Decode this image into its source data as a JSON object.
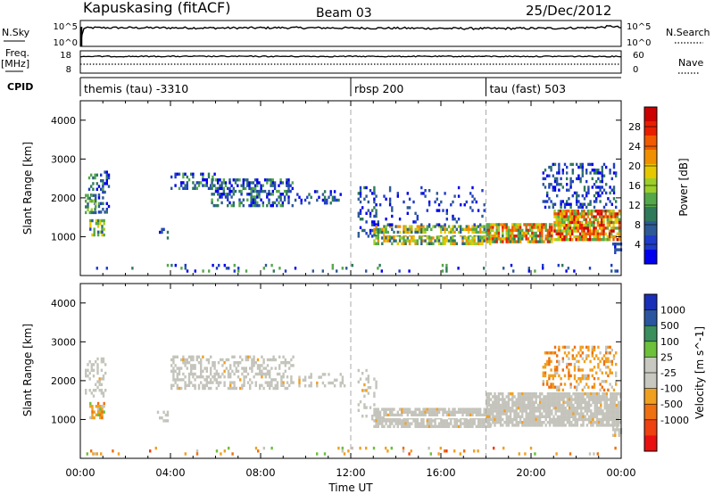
{
  "header": {
    "station": "Kapuskasing (fitACF)",
    "beam": "Beam 03",
    "date": "25/Dec/2012"
  },
  "labels": {
    "nsky": "N.Sky",
    "nsearch": "N.Search",
    "freq": "Freq.",
    "mhz": "[MHz]",
    "nave": "Nave",
    "cpid": "CPID",
    "xlabel": "Time UT",
    "ylabel1": "Slant Range [km]",
    "ylabel2": "Slant Range [km]"
  },
  "noise_axis": {
    "left_top": "10^5",
    "left_bottom": "10^0",
    "right_top": "10^5",
    "right_bottom": "10^0"
  },
  "freq_axis": {
    "left_top": "18",
    "left_bottom": "8",
    "right_top": "60",
    "right_bottom": "0"
  },
  "cpid_segments": [
    {
      "label": "themis (tau) -3310",
      "start_hour": 0
    },
    {
      "label": "rbsp 200",
      "start_hour": 12
    },
    {
      "label": "tau (fast) 503",
      "start_hour": 18
    }
  ],
  "colors": {
    "power": [
      "#0000ee",
      "#1e3cc8",
      "#2d5a96",
      "#2f7a5a",
      "#55a84a",
      "#9ccf2a",
      "#e6c800",
      "#f09000",
      "#f05a00",
      "#e81e00",
      "#cc0000"
    ],
    "velocity": [
      "#1a2fb8",
      "#2a56a0",
      "#3a8f5c",
      "#6cc03a",
      "#c8c8c0",
      "#c8c8c0",
      "#f0a020",
      "#ee7010",
      "#ee4010",
      "#e81010"
    ],
    "ground": "#c4c4bc"
  },
  "chart_data": [
    {
      "type": "line",
      "title": "N.Sky / N.Search noise",
      "xlim": [
        0,
        24
      ],
      "series": [
        {
          "name": "N.Sky",
          "x": [
            0.05,
            0.1,
            0.5,
            3,
            6,
            9,
            12,
            15,
            18,
            21,
            23,
            23.6,
            24
          ],
          "y_frac": [
            0.08,
            0.7,
            0.72,
            0.72,
            0.71,
            0.72,
            0.71,
            0.7,
            0.69,
            0.7,
            0.73,
            0.78,
            0.72
          ]
        }
      ]
    },
    {
      "type": "line",
      "title": "Freq / Nave",
      "xlim": [
        0,
        24
      ],
      "series": [
        {
          "name": "Freq",
          "x": [
            0,
            6,
            12,
            18,
            24
          ],
          "y_frac": [
            0.75,
            0.75,
            0.76,
            0.75,
            0.75
          ]
        },
        {
          "name": "Nave",
          "x": [
            0,
            6,
            12,
            18,
            24
          ],
          "y_frac": [
            0.55,
            0.55,
            0.55,
            0.55,
            0.55
          ]
        }
      ]
    },
    {
      "type": "heatmap",
      "title": "Power",
      "colorbar_label": "Power [dB]",
      "colorbar_ticks": [
        "4",
        "8",
        "12",
        "16",
        "20",
        "24",
        "28"
      ],
      "xlim": [
        0,
        24
      ],
      "ylim": [
        0,
        4500
      ],
      "xticks": [
        "00:00",
        "04:00",
        "08:00",
        "12:00",
        "16:00",
        "20:00",
        "00:00"
      ],
      "yticks": [
        "1000",
        "2000",
        "3000",
        "4000"
      ],
      "regions": [
        {
          "t0": 0.35,
          "t1": 1.3,
          "r0": 1600,
          "r1": 2700,
          "density": 0.3,
          "c0": 0,
          "c1": 4
        },
        {
          "t0": 0.2,
          "t1": 0.7,
          "r0": 1600,
          "r1": 2100,
          "density": 0.55,
          "c0": 2,
          "c1": 5
        },
        {
          "t0": 0.4,
          "t1": 1.1,
          "r0": 1000,
          "r1": 1450,
          "density": 0.6,
          "c0": 1,
          "c1": 6
        },
        {
          "t0": 3.4,
          "t1": 3.9,
          "r0": 900,
          "r1": 1300,
          "density": 0.35,
          "c0": 0,
          "c1": 3
        },
        {
          "t0": 4.0,
          "t1": 6.0,
          "r0": 2200,
          "r1": 2650,
          "density": 0.4,
          "c0": 0,
          "c1": 4
        },
        {
          "t0": 5.8,
          "t1": 9.5,
          "r0": 1800,
          "r1": 2500,
          "density": 0.45,
          "c0": 0,
          "c1": 4
        },
        {
          "t0": 9.5,
          "t1": 11.8,
          "r0": 1800,
          "r1": 2200,
          "density": 0.3,
          "c0": 0,
          "c1": 3
        },
        {
          "t0": 12.3,
          "t1": 13.2,
          "r0": 1000,
          "r1": 2300,
          "density": 0.25,
          "c0": 0,
          "c1": 3
        },
        {
          "t0": 13.0,
          "t1": 18.2,
          "r0": 800,
          "r1": 1300,
          "density": 0.7,
          "c0": 2,
          "c1": 7
        },
        {
          "t0": 13.0,
          "t1": 18.0,
          "r0": 1300,
          "r1": 2300,
          "density": 0.12,
          "c0": 0,
          "c1": 2
        },
        {
          "t0": 18.0,
          "t1": 21.0,
          "r0": 850,
          "r1": 1350,
          "density": 0.8,
          "c0": 3,
          "c1": 9
        },
        {
          "t0": 21.0,
          "t1": 24.0,
          "r0": 900,
          "r1": 1700,
          "density": 0.85,
          "c0": 4,
          "c1": 10
        },
        {
          "t0": 20.5,
          "t1": 23.8,
          "r0": 1700,
          "r1": 2900,
          "density": 0.3,
          "c0": 0,
          "c1": 3
        },
        {
          "t0": 23.6,
          "t1": 24.0,
          "r0": 550,
          "r1": 850,
          "density": 0.7,
          "c0": 0,
          "c1": 2
        },
        {
          "t0": 0.0,
          "t1": 24.0,
          "r0": 100,
          "r1": 300,
          "density": 0.08,
          "c0": 0,
          "c1": 4
        }
      ]
    },
    {
      "type": "heatmap",
      "title": "Velocity",
      "colorbar_label": "Velocity [m s^-1]",
      "colorbar_ticks": [
        "1000",
        "500",
        "100",
        "25",
        "-25",
        "-100",
        "-500",
        "-1000"
      ],
      "xlim": [
        0,
        24
      ],
      "ylim": [
        0,
        4500
      ],
      "xticks": [
        "00:00",
        "04:00",
        "08:00",
        "12:00",
        "16:00",
        "20:00",
        "00:00"
      ],
      "yticks": [
        "1000",
        "2000",
        "3000",
        "4000"
      ],
      "regions": [
        {
          "t0": 0.2,
          "t1": 1.2,
          "r0": 1600,
          "r1": 2600,
          "density": 0.3,
          "kind": "grey"
        },
        {
          "t0": 0.4,
          "t1": 1.1,
          "r0": 1000,
          "r1": 1450,
          "density": 0.6,
          "kind": "mixed"
        },
        {
          "t0": 3.4,
          "t1": 3.9,
          "r0": 900,
          "r1": 1300,
          "density": 0.35,
          "kind": "grey"
        },
        {
          "t0": 4.0,
          "t1": 9.5,
          "r0": 1800,
          "r1": 2650,
          "density": 0.45,
          "kind": "grey"
        },
        {
          "t0": 9.5,
          "t1": 11.8,
          "r0": 1800,
          "r1": 2200,
          "density": 0.3,
          "kind": "grey"
        },
        {
          "t0": 12.3,
          "t1": 13.2,
          "r0": 1000,
          "r1": 2300,
          "density": 0.2,
          "kind": "grey"
        },
        {
          "t0": 13.0,
          "t1": 18.2,
          "r0": 800,
          "r1": 1300,
          "density": 0.8,
          "kind": "grey"
        },
        {
          "t0": 18.0,
          "t1": 24.0,
          "r0": 850,
          "r1": 1700,
          "density": 0.85,
          "kind": "grey"
        },
        {
          "t0": 20.5,
          "t1": 23.8,
          "r0": 1700,
          "r1": 2900,
          "density": 0.3,
          "kind": "orange"
        },
        {
          "t0": 23.6,
          "t1": 24.0,
          "r0": 550,
          "r1": 850,
          "density": 0.7,
          "kind": "grey"
        },
        {
          "t0": 0.0,
          "t1": 24.0,
          "r0": 100,
          "r1": 300,
          "density": 0.08,
          "kind": "mixed"
        }
      ]
    }
  ]
}
